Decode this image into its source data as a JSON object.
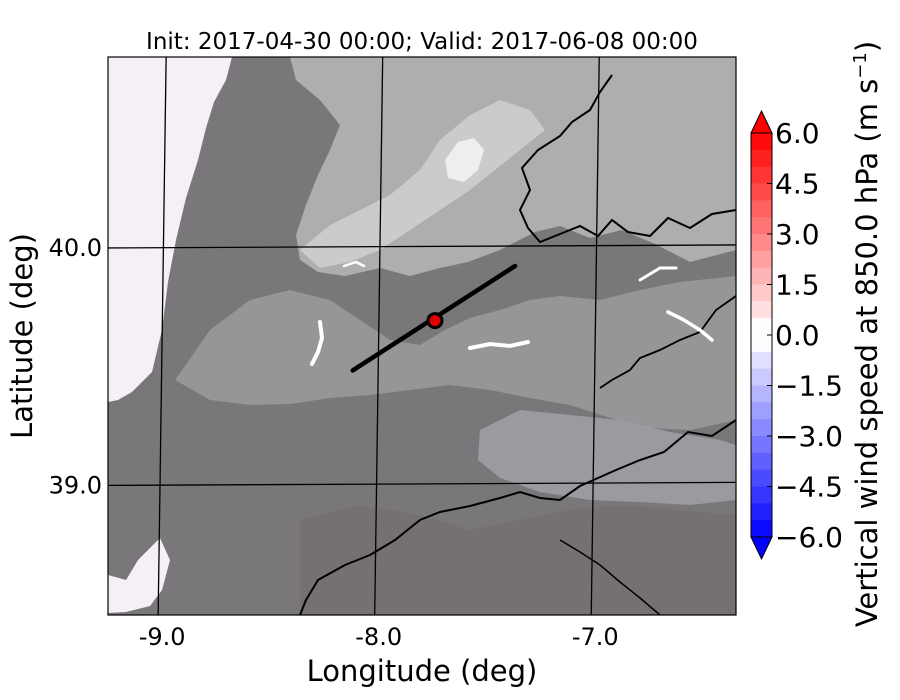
{
  "chart_data": {
    "type": "heatmap",
    "title": "Init: 2017-04-30 00:00; Valid: 2017-06-08 00:00",
    "xlabel": "Longitude (deg)",
    "ylabel": "Latitude (deg)",
    "xlim": [
      -9.25,
      -6.35
    ],
    "ylim": [
      38.45,
      40.8
    ],
    "x_ticks": [
      {
        "value": -9.0,
        "label": "-9.0"
      },
      {
        "value": -8.0,
        "label": "-8.0"
      },
      {
        "value": -7.0,
        "label": "-7.0"
      }
    ],
    "y_ticks": [
      {
        "value": 40.0,
        "label": "40.0"
      },
      {
        "value": 39.0,
        "label": "39.0"
      }
    ],
    "grid": true,
    "cross_section_line": {
      "start": {
        "lon": -8.12,
        "lat": 39.48
      },
      "end": {
        "lon": -7.37,
        "lat": 39.92
      }
    },
    "marker": {
      "lon": -7.74,
      "lat": 39.69
    },
    "colorbar": {
      "label": "Vertical wind speed at 850.0 hPa (m s",
      "label_sup": "−1",
      "label_close": ")",
      "min": -6.0,
      "max": 6.0,
      "extend": "both",
      "ticks": [
        {
          "value": 6.0,
          "label": "6.0"
        },
        {
          "value": 4.5,
          "label": "4.5"
        },
        {
          "value": 3.0,
          "label": "3.0"
        },
        {
          "value": 1.5,
          "label": "1.5"
        },
        {
          "value": 0.0,
          "label": "0.0"
        },
        {
          "value": -1.5,
          "label": "−1.5"
        },
        {
          "value": -3.0,
          "label": "−3.0"
        },
        {
          "value": -4.5,
          "label": "−4.5"
        },
        {
          "value": -6.0,
          "label": "−6.0"
        }
      ],
      "levels": 24
    },
    "colors": {
      "terrain_shade": "#7a777b",
      "highland_shade": "#b8b6ba",
      "peak_shade": "#eeeeee",
      "ocean": "#f4f0f6",
      "cross_section": "#000000",
      "marker_fill": "#e00000",
      "positive": "#ff0000",
      "negative": "#0000ff",
      "neutral": "#ffffff"
    }
  }
}
